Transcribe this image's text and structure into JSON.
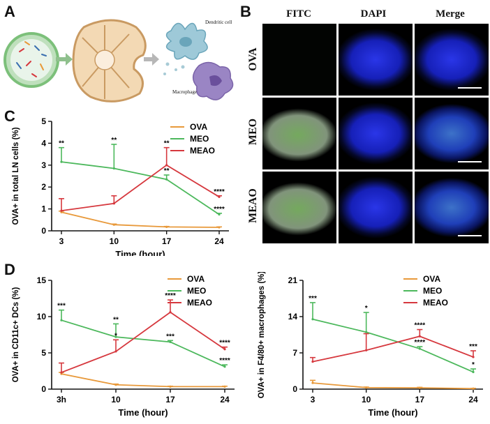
{
  "panel_labels": {
    "a": "A",
    "b": "B",
    "c": "C",
    "d": "D"
  },
  "schematic": {
    "dendritic_label": "Dendritic cell",
    "macrophage_label": "Macrophage"
  },
  "micrographs": {
    "columns": [
      "FITC",
      "DAPI",
      "Merge"
    ],
    "rows": [
      "OVA",
      "MEO",
      "MEAO"
    ]
  },
  "colors": {
    "OVA": "#e8993a",
    "MEO": "#4cb85c",
    "MEAO": "#d6383e"
  },
  "chart_data": [
    {
      "type": "line",
      "id": "C",
      "xlabel": "Time (hour)",
      "ylabel": "OVA+ in total LN cells (%)",
      "x": [
        "3",
        "10",
        "17",
        "24"
      ],
      "ylim": [
        0,
        5
      ],
      "yticks": [
        0,
        1,
        2,
        3,
        4,
        5
      ],
      "legend_position": "top-right",
      "series": [
        {
          "name": "OVA",
          "values": [
            0.85,
            0.28,
            0.18,
            0.16
          ],
          "err": [
            0.05,
            0.03,
            0.02,
            0.02
          ],
          "stars": [
            "",
            "",
            "",
            ""
          ]
        },
        {
          "name": "MEO",
          "values": [
            3.15,
            2.85,
            2.35,
            0.75
          ],
          "err": [
            0.65,
            1.1,
            0.2,
            0.05
          ],
          "stars": [
            "**",
            "**",
            "**",
            "****"
          ]
        },
        {
          "name": "MEAO",
          "values": [
            0.92,
            1.25,
            3.0,
            1.55
          ],
          "err": [
            0.55,
            0.35,
            0.8,
            0.05
          ],
          "stars": [
            "",
            "",
            "**",
            "****"
          ]
        }
      ]
    },
    {
      "type": "line",
      "id": "D1",
      "xlabel": "Time (hour)",
      "ylabel": "OVA+ in CD11c+ DCs (%)",
      "x": [
        "3h",
        "10",
        "17",
        "24"
      ],
      "ylim": [
        0,
        15
      ],
      "yticks": [
        0,
        5,
        10,
        15
      ],
      "legend_position": "top-right",
      "series": [
        {
          "name": "OVA",
          "values": [
            2.1,
            0.6,
            0.35,
            0.35
          ],
          "err": [
            0.2,
            0.1,
            0.05,
            0.05
          ],
          "stars": [
            "",
            "",
            "",
            ""
          ]
        },
        {
          "name": "MEO",
          "values": [
            9.5,
            7.2,
            6.5,
            3.1
          ],
          "err": [
            1.4,
            1.8,
            0.2,
            0.25
          ],
          "stars": [
            "***",
            "**",
            "***",
            "****"
          ]
        },
        {
          "name": "MEAO",
          "values": [
            2.3,
            5.2,
            10.6,
            5.5
          ],
          "err": [
            1.3,
            1.6,
            1.7,
            0.3
          ],
          "stars": [
            "",
            "*",
            "****",
            "****"
          ]
        }
      ]
    },
    {
      "type": "line",
      "id": "D2",
      "xlabel": "Time (hour)",
      "ylabel": "OVA+ in F4/80+ macrophages (%)",
      "x": [
        "3",
        "10",
        "17",
        "24"
      ],
      "ylim": [
        0,
        21
      ],
      "yticks": [
        0,
        7,
        14,
        21
      ],
      "legend_position": "top-right",
      "series": [
        {
          "name": "OVA",
          "values": [
            1.2,
            0.3,
            0.25,
            0.1
          ],
          "err": [
            0.5,
            0.1,
            0.1,
            0.05
          ],
          "stars": [
            "",
            "",
            "",
            ""
          ]
        },
        {
          "name": "MEO",
          "values": [
            13.5,
            11.0,
            7.8,
            3.3
          ],
          "err": [
            3.2,
            3.8,
            0.4,
            0.6
          ],
          "stars": [
            "***",
            "*",
            "****",
            "*"
          ]
        },
        {
          "name": "MEAO",
          "values": [
            5.3,
            7.5,
            10.2,
            6.2
          ],
          "err": [
            0.8,
            3.2,
            1.3,
            1.2
          ],
          "stars": [
            "",
            "",
            "****",
            "***"
          ]
        }
      ]
    }
  ]
}
